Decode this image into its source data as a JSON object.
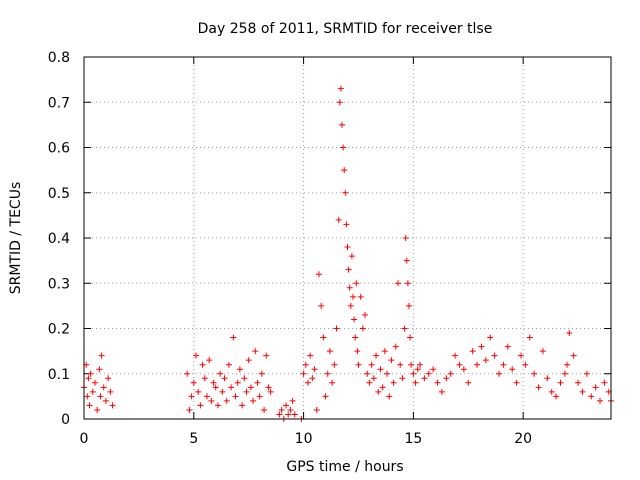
{
  "chart_data": {
    "type": "scatter",
    "title": "Day 258 of 2011, SRMTID for receiver tlse",
    "xlabel": "GPS time / hours",
    "ylabel": "SRMTID / TECUs",
    "xlim": [
      0,
      24
    ],
    "ylim": [
      0,
      0.8
    ],
    "xticks": [
      0,
      5,
      10,
      15,
      20
    ],
    "xtick_labels": [
      "0",
      "5",
      "10",
      "15",
      "20"
    ],
    "yticks": [
      0,
      0.1,
      0.2,
      0.3,
      0.4,
      0.5,
      0.6,
      0.7,
      0.8
    ],
    "ytick_labels": [
      "0",
      "0.1",
      "0.2",
      "0.3",
      "0.4",
      "0.5",
      "0.6",
      "0.7",
      "0.8"
    ],
    "grid": true,
    "marker": "+",
    "series": [
      {
        "name": "SRMTID",
        "color": "#ff0000",
        "x": [
          0.0,
          0.1,
          0.15,
          0.2,
          0.25,
          0.3,
          0.4,
          0.5,
          0.6,
          0.7,
          0.75,
          0.8,
          0.9,
          1.0,
          1.1,
          1.2,
          1.3,
          4.7,
          4.8,
          4.9,
          5.0,
          5.1,
          5.2,
          5.3,
          5.4,
          5.5,
          5.6,
          5.7,
          5.8,
          5.9,
          6.0,
          6.1,
          6.2,
          6.3,
          6.4,
          6.5,
          6.6,
          6.7,
          6.8,
          6.9,
          7.0,
          7.1,
          7.2,
          7.3,
          7.4,
          7.5,
          7.6,
          7.7,
          7.8,
          7.9,
          8.0,
          8.1,
          8.2,
          8.3,
          8.4,
          8.5,
          8.9,
          9.0,
          9.1,
          9.2,
          9.3,
          9.4,
          9.5,
          9.6,
          9.9,
          10.0,
          10.1,
          10.2,
          10.3,
          10.4,
          10.5,
          10.6,
          10.7,
          10.8,
          10.9,
          11.0,
          11.1,
          11.2,
          11.3,
          11.4,
          11.5,
          11.6,
          11.65,
          11.7,
          11.75,
          11.8,
          11.85,
          11.9,
          11.95,
          12.0,
          12.05,
          12.1,
          12.15,
          12.2,
          12.25,
          12.3,
          12.35,
          12.4,
          12.45,
          12.5,
          12.6,
          12.7,
          12.8,
          12.9,
          13.0,
          13.1,
          13.2,
          13.3,
          13.4,
          13.5,
          13.6,
          13.7,
          13.8,
          13.9,
          14.0,
          14.1,
          14.2,
          14.3,
          14.4,
          14.5,
          14.6,
          14.65,
          14.7,
          14.75,
          14.8,
          14.85,
          14.9,
          15.0,
          15.1,
          15.2,
          15.3,
          15.5,
          15.7,
          15.9,
          16.1,
          16.3,
          16.5,
          16.7,
          16.9,
          17.1,
          17.3,
          17.5,
          17.7,
          17.9,
          18.1,
          18.3,
          18.5,
          18.7,
          18.9,
          19.1,
          19.3,
          19.5,
          19.7,
          19.9,
          20.1,
          20.3,
          20.5,
          20.7,
          20.9,
          21.1,
          21.3,
          21.5,
          21.7,
          21.9,
          22.0,
          22.1,
          22.3,
          22.5,
          22.7,
          22.9,
          23.1,
          23.3,
          23.5,
          23.7,
          23.9,
          24.0
        ],
        "y": [
          0.07,
          0.12,
          0.05,
          0.09,
          0.03,
          0.1,
          0.06,
          0.08,
          0.02,
          0.11,
          0.05,
          0.14,
          0.07,
          0.04,
          0.09,
          0.06,
          0.03,
          0.1,
          0.02,
          0.05,
          0.08,
          0.14,
          0.06,
          0.03,
          0.12,
          0.09,
          0.05,
          0.13,
          0.04,
          0.08,
          0.07,
          0.03,
          0.1,
          0.06,
          0.09,
          0.04,
          0.12,
          0.07,
          0.18,
          0.05,
          0.08,
          0.11,
          0.03,
          0.09,
          0.06,
          0.13,
          0.07,
          0.04,
          0.15,
          0.08,
          0.05,
          0.1,
          0.02,
          0.14,
          0.07,
          0.06,
          0.01,
          0.02,
          0.0,
          0.03,
          0.01,
          0.02,
          0.04,
          0.01,
          0.0,
          0.1,
          0.12,
          0.08,
          0.14,
          0.09,
          0.11,
          0.02,
          0.32,
          0.25,
          0.18,
          0.05,
          0.1,
          0.15,
          0.08,
          0.12,
          0.2,
          0.44,
          0.7,
          0.73,
          0.65,
          0.6,
          0.55,
          0.5,
          0.43,
          0.38,
          0.33,
          0.29,
          0.25,
          0.36,
          0.27,
          0.22,
          0.18,
          0.3,
          0.15,
          0.12,
          0.27,
          0.2,
          0.23,
          0.1,
          0.08,
          0.12,
          0.09,
          0.14,
          0.06,
          0.11,
          0.07,
          0.15,
          0.1,
          0.05,
          0.13,
          0.08,
          0.16,
          0.3,
          0.12,
          0.09,
          0.2,
          0.4,
          0.35,
          0.3,
          0.25,
          0.18,
          0.12,
          0.1,
          0.08,
          0.11,
          0.12,
          0.09,
          0.1,
          0.11,
          0.08,
          0.06,
          0.09,
          0.1,
          0.14,
          0.12,
          0.11,
          0.08,
          0.15,
          0.12,
          0.16,
          0.13,
          0.18,
          0.14,
          0.1,
          0.12,
          0.16,
          0.11,
          0.08,
          0.14,
          0.12,
          0.18,
          0.1,
          0.07,
          0.15,
          0.09,
          0.06,
          0.05,
          0.08,
          0.1,
          0.12,
          0.19,
          0.14,
          0.08,
          0.06,
          0.1,
          0.05,
          0.07,
          0.04,
          0.08,
          0.06,
          0.04
        ]
      }
    ]
  }
}
